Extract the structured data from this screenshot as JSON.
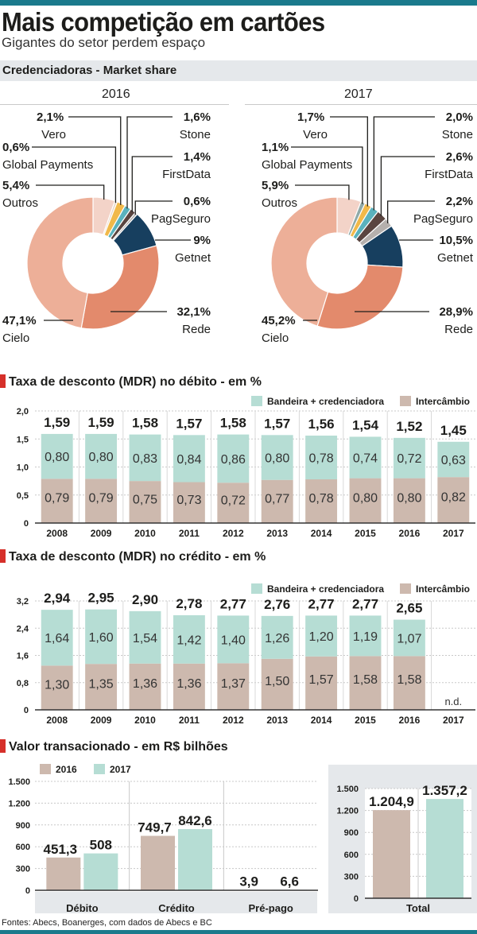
{
  "header": {
    "title": "Mais competição em cartões",
    "subtitle": "Gigantes do setor perdem espaço",
    "section_band": "Credenciadoras - Market share"
  },
  "colors": {
    "brand_bar": "#1a7a8c",
    "section_marker": "#d6302a",
    "bandeira": "#b6ddd4",
    "intercambio": "#cdb9ae",
    "band_bg": "#e5e8eb"
  },
  "chart_data": [
    {
      "type": "pie",
      "title": "2016",
      "subtitle": "Credenciadoras - Market share",
      "donut": true,
      "slices": [
        {
          "name": "Outros",
          "value": 5.4,
          "label": "5,4%",
          "color": "#f3d3c8"
        },
        {
          "name": "Global Payments",
          "value": 0.6,
          "label": "0,6%",
          "color": "#e9d8c7"
        },
        {
          "name": "Vero",
          "value": 2.1,
          "label": "2,1%",
          "color": "#f1b94a"
        },
        {
          "name": "Stone",
          "value": 1.6,
          "label": "1,6%",
          "color": "#5ab2bd"
        },
        {
          "name": "FirstData",
          "value": 1.4,
          "label": "1,4%",
          "color": "#5a4540"
        },
        {
          "name": "PagSeguro",
          "value": 0.6,
          "label": "0,6%",
          "color": "#b5b0ad"
        },
        {
          "name": "Getnet",
          "value": 9.0,
          "label": "9%",
          "color": "#173f5f"
        },
        {
          "name": "Rede",
          "value": 32.1,
          "label": "32,1%",
          "color": "#e38a6c"
        },
        {
          "name": "Cielo",
          "value": 47.1,
          "label": "47,1%",
          "color": "#edaf98"
        }
      ]
    },
    {
      "type": "pie",
      "title": "2017",
      "subtitle": "Credenciadoras - Market share",
      "donut": true,
      "slices": [
        {
          "name": "Outros",
          "value": 5.9,
          "label": "5,9%",
          "color": "#f3d3c8"
        },
        {
          "name": "Global Payments",
          "value": 1.1,
          "label": "1,1%",
          "color": "#8fa9a8"
        },
        {
          "name": "Vero",
          "value": 1.7,
          "label": "1,7%",
          "color": "#f1b94a"
        },
        {
          "name": "Stone",
          "value": 2.0,
          "label": "2,0%",
          "color": "#5ab2bd"
        },
        {
          "name": "FirstData",
          "value": 2.6,
          "label": "2,6%",
          "color": "#5a4540"
        },
        {
          "name": "PagSeguro",
          "value": 2.2,
          "label": "2,2%",
          "color": "#b5b0ad"
        },
        {
          "name": "Getnet",
          "value": 10.5,
          "label": "10,5%",
          "color": "#173f5f"
        },
        {
          "name": "Rede",
          "value": 28.9,
          "label": "28,9%",
          "color": "#e38a6c"
        },
        {
          "name": "Cielo",
          "value": 45.2,
          "label": "45,2%",
          "color": "#edaf98"
        }
      ]
    },
    {
      "type": "bar",
      "stacked": true,
      "title": "Taxa de desconto (MDR) no débito - em %",
      "categories": [
        "2008",
        "2009",
        "2010",
        "2011",
        "2012",
        "2013",
        "2014",
        "2015",
        "2016",
        "2017"
      ],
      "series": [
        {
          "name": "Intercâmbio",
          "color": "#cdb9ae",
          "values": [
            0.79,
            0.79,
            0.75,
            0.73,
            0.72,
            0.77,
            0.78,
            0.8,
            0.8,
            0.82
          ],
          "labels": [
            "0,79",
            "0,79",
            "0,75",
            "0,73",
            "0,72",
            "0,77",
            "0,78",
            "0,80",
            "0,80",
            "0,82"
          ]
        },
        {
          "name": "Bandeira + credenciadora",
          "color": "#b6ddd4",
          "values": [
            0.8,
            0.8,
            0.83,
            0.84,
            0.86,
            0.8,
            0.78,
            0.74,
            0.72,
            0.63
          ],
          "labels": [
            "0,80",
            "0,80",
            "0,83",
            "0,84",
            "0,86",
            "0,80",
            "0,78",
            "0,74",
            "0,72",
            "0,63"
          ]
        }
      ],
      "totals": [
        1.59,
        1.59,
        1.58,
        1.57,
        1.58,
        1.57,
        1.56,
        1.54,
        1.52,
        1.45
      ],
      "total_labels": [
        "1,59",
        "1,59",
        "1,58",
        "1,57",
        "1,58",
        "1,57",
        "1,56",
        "1,54",
        "1,52",
        "1,45"
      ],
      "yticks": [
        "0",
        "0,5",
        "1,0",
        "1,5",
        "2,0"
      ],
      "ytick_values": [
        0,
        0.5,
        1.0,
        1.5,
        2.0
      ],
      "ylim": [
        0,
        2.0
      ],
      "grid": true,
      "legend": "top-right",
      "xlabel": "",
      "ylabel": ""
    },
    {
      "type": "bar",
      "stacked": true,
      "title": "Taxa de desconto (MDR) no crédito - em %",
      "categories": [
        "2008",
        "2009",
        "2010",
        "2011",
        "2012",
        "2013",
        "2014",
        "2015",
        "2016",
        "2017"
      ],
      "series": [
        {
          "name": "Intercâmbio",
          "color": "#cdb9ae",
          "values": [
            1.3,
            1.35,
            1.36,
            1.36,
            1.37,
            1.5,
            1.57,
            1.58,
            1.58,
            null
          ],
          "labels": [
            "1,30",
            "1,35",
            "1,36",
            "1,36",
            "1,37",
            "1,50",
            "1,57",
            "1,58",
            "1,58",
            ""
          ]
        },
        {
          "name": "Bandeira + credenciadora",
          "color": "#b6ddd4",
          "values": [
            1.64,
            1.6,
            1.54,
            1.42,
            1.4,
            1.26,
            1.2,
            1.19,
            1.07,
            null
          ],
          "labels": [
            "1,64",
            "1,60",
            "1,54",
            "1,42",
            "1,40",
            "1,26",
            "1,20",
            "1,19",
            "1,07",
            ""
          ]
        }
      ],
      "totals": [
        2.94,
        2.95,
        2.9,
        2.78,
        2.77,
        2.76,
        2.77,
        2.77,
        2.65,
        null
      ],
      "total_labels": [
        "2,94",
        "2,95",
        "2,90",
        "2,78",
        "2,77",
        "2,76",
        "2,77",
        "2,77",
        "2,65",
        ""
      ],
      "na_label": "n.d.",
      "yticks": [
        "0",
        "0,8",
        "1,6",
        "2,4",
        "3,2"
      ],
      "ytick_values": [
        0,
        0.8,
        1.6,
        2.4,
        3.2
      ],
      "ylim": [
        0,
        3.2
      ],
      "grid": true,
      "legend": "top-right",
      "xlabel": "",
      "ylabel": ""
    },
    {
      "type": "bar",
      "title": "Valor transacionado - em R$ bilhões",
      "categories": [
        "Débito",
        "Crédito",
        "Pré-pago"
      ],
      "series": [
        {
          "name": "2016",
          "color": "#cdb9ae",
          "values": [
            451.3,
            749.7,
            3.9
          ],
          "labels": [
            "451,3",
            "749,7",
            "3,9"
          ]
        },
        {
          "name": "2017",
          "color": "#b6ddd4",
          "values": [
            508,
            842.6,
            6.6
          ],
          "labels": [
            "508",
            "842,6",
            "6,6"
          ]
        }
      ],
      "yticks": [
        "0",
        "300",
        "600",
        "900",
        "1.200",
        "1.500"
      ],
      "ytick_values": [
        0,
        300,
        600,
        900,
        1200,
        1500
      ],
      "ylim": [
        0,
        1500
      ],
      "grid": true,
      "legend": "top-left",
      "xlabel": "",
      "ylabel": ""
    },
    {
      "type": "bar",
      "title": "Total",
      "categories": [
        "Total"
      ],
      "series": [
        {
          "name": "2016",
          "color": "#cdb9ae",
          "values": [
            1204.9
          ],
          "labels": [
            "1.204,9"
          ]
        },
        {
          "name": "2017",
          "color": "#b6ddd4",
          "values": [
            1357.2
          ],
          "labels": [
            "1.357,2"
          ]
        }
      ],
      "yticks": [
        "0",
        "300",
        "600",
        "900",
        "1.200",
        "1.500"
      ],
      "ytick_values": [
        0,
        300,
        600,
        900,
        1200,
        1500
      ],
      "ylim": [
        0,
        1500
      ],
      "grid": true,
      "xlabel": "Total",
      "ylabel": ""
    }
  ],
  "legends": {
    "mdr": {
      "bandeira": "Bandeira + credenciadora",
      "intercambio": "Intercâmbio"
    },
    "valor": {
      "y2016": "2016",
      "y2017": "2017"
    }
  },
  "footer": {
    "source": "Fontes: Abecs, Boanerges, com dados de Abecs e BC"
  }
}
